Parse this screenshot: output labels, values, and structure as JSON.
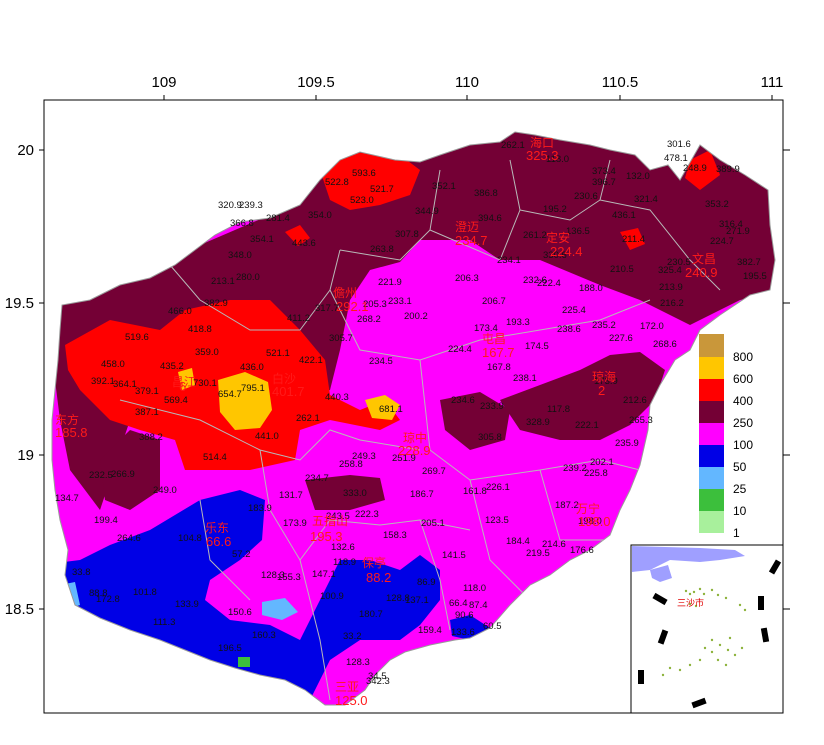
{
  "axes": {
    "x_ticks": [
      "109",
      "109.5",
      "110",
      "110.5",
      "111"
    ],
    "y_ticks": [
      "20",
      "19.5",
      "19",
      "18.5"
    ]
  },
  "colors": {
    "c800": "#c9973a",
    "c600": "#ffc600",
    "c400": "#ff0000",
    "c250": "#740035",
    "c100": "#ff00ff",
    "c50": "#0000e6",
    "c25": "#63b7ff",
    "c10": "#3cbf3c",
    "c1": "#a8f09c",
    "county_line": "#b8b8b8",
    "sea": "#ffffff"
  },
  "legend": {
    "entries": [
      {
        "label": "800",
        "color": "#c9973a"
      },
      {
        "label": "600",
        "color": "#ffc600"
      },
      {
        "label": "400",
        "color": "#ff0000"
      },
      {
        "label": "250",
        "color": "#740035"
      },
      {
        "label": "100",
        "color": "#ff00ff"
      },
      {
        "label": "50",
        "color": "#0000e6"
      },
      {
        "label": "25",
        "color": "#63b7ff"
      },
      {
        "label": "10",
        "color": "#3cbf3c"
      },
      {
        "label": "1",
        "color": "#a8f09c"
      }
    ]
  },
  "cities": [
    {
      "name": "儋州",
      "value": "292.1"
    },
    {
      "name": "白沙",
      "value": "401.7"
    },
    {
      "name": "东方",
      "value": "185.8"
    },
    {
      "name": "琼中",
      "value": "228.9"
    },
    {
      "name": "屯昌",
      "value": "167.7"
    },
    {
      "name": "澄迈",
      "value": "234.7"
    },
    {
      "name": "定安",
      "value": "224.4"
    },
    {
      "name": "文昌",
      "value": "240.9"
    },
    {
      "name": "乐东",
      "value": "66.6"
    },
    {
      "name": "五指山",
      "value": "195.3"
    },
    {
      "name": "保亭",
      "value": "88.2"
    },
    {
      "name": "三亚",
      "value": "125.0"
    },
    {
      "name": "万宁",
      "value": "198.0"
    },
    {
      "name": "琼海",
      "value": "2"
    },
    {
      "name": "海口",
      "value": "325.3"
    },
    {
      "name": "昌江",
      "value": "6"
    }
  ],
  "stations": [
    "593.6",
    "522.8",
    "521.7",
    "523.0",
    "352.1",
    "320.9",
    "386.8",
    "239.3",
    "281.4",
    "354.0",
    "344.9",
    "394.6",
    "366.8",
    "354.1",
    "443.6",
    "307.8",
    "263.8",
    "348.0",
    "221.9",
    "206.3",
    "234.1",
    "232.6",
    "222.4",
    "188.0",
    "213.1",
    "280.0",
    "317.7",
    "205.3",
    "233.1",
    "200.2",
    "206.7",
    "225.4",
    "235.2",
    "382.9",
    "466.0",
    "411.2",
    "268.2",
    "173.4",
    "193.3",
    "238.6",
    "227.6",
    "418.8",
    "519.6",
    "305.7",
    "224.4",
    "174.5",
    "458.0",
    "359.0",
    "521.1",
    "234.5",
    "167.8",
    "435.2",
    "436.0",
    "730.1",
    "422.1",
    "392.1",
    "364.1",
    "379.1",
    "795.1",
    "654.7",
    "569.4",
    "440.3",
    "681.1",
    "234.6",
    "233.9",
    "238.1",
    "387.1",
    "328.9",
    "212.6",
    "388.2",
    "262.1",
    "441.0",
    "305.8",
    "265.3",
    "235.9",
    "222.1",
    "514.4",
    "249.3",
    "258.8",
    "251.9",
    "269.7",
    "239.2",
    "202.1",
    "225.8",
    "232.5",
    "266.9",
    "234.7",
    "249.0",
    "333.0",
    "186.7",
    "161.8",
    "226.1",
    "134.7",
    "131.7",
    "183.9",
    "243.5",
    "222.3",
    "187.2",
    "199.4",
    "173.9",
    "205.1",
    "123.5",
    "198.0",
    "104.8",
    "158.3",
    "184.4",
    "214.6",
    "176.6",
    "264.6",
    "132.6",
    "219.5",
    "57.2",
    "118.9",
    "141.5",
    "128.3",
    "147.1",
    "86.9",
    "88.8",
    "101.8",
    "133.9",
    "100.9",
    "128.8",
    "137.1",
    "118.0",
    "66.4",
    "90.6",
    "111.3",
    "159.4",
    "180.7",
    "160.3",
    "33.2",
    "133.6",
    "196.5",
    "128.3",
    "342.3",
    "389.9",
    "353.2",
    "316.4",
    "271.9",
    "224.7",
    "230.5",
    "382.7",
    "373.4",
    "396.7",
    "301.6",
    "478.1",
    "248.9",
    "132.0",
    "321.4",
    "436.1",
    "211.4",
    "210.5",
    "213.9",
    "216.2",
    "172.0",
    "268.6",
    "325.4",
    "261.2",
    "330.6",
    "262.1",
    "118.0",
    "195.2",
    "230.6",
    "136.5",
    "173.9",
    "117.8",
    "87.4",
    "60.5",
    "33.8",
    "34.5",
    "195.5",
    "155.3",
    "150.6",
    "172.8"
  ],
  "inset": {
    "label": "三沙市"
  }
}
